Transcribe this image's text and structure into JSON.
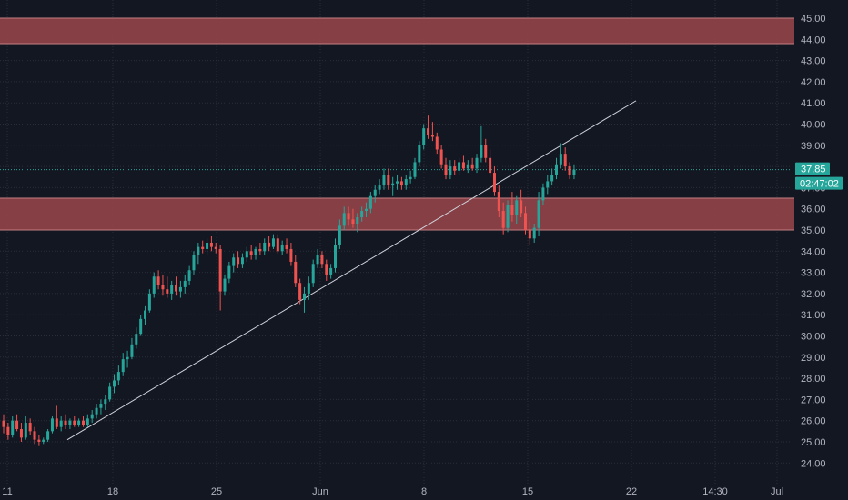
{
  "chart_data": {
    "type": "candlestick",
    "y_axis": {
      "range": [
        23.5,
        45.6
      ],
      "ticks": [
        "24.00",
        "25.00",
        "26.00",
        "27.00",
        "28.00",
        "29.00",
        "30.00",
        "31.00",
        "32.00",
        "33.00",
        "34.00",
        "35.00",
        "36.00",
        "37.00",
        "38.00",
        "39.00",
        "40.00",
        "41.00",
        "42.00",
        "43.00",
        "44.00",
        "45.00"
      ],
      "position": "right",
      "grid": true
    },
    "x_axis": {
      "ticks": [
        "11",
        "18",
        "25",
        "Jun",
        "8",
        "15",
        "22",
        "14:30",
        "Jul"
      ],
      "grid": true
    },
    "zones": [
      {
        "from": 43.8,
        "to": 45.0
      },
      {
        "from": 35.0,
        "to": 36.5
      }
    ],
    "trendline": {
      "start": [
        "May 14",
        25.1
      ],
      "end": [
        "Jun 22",
        41.1
      ]
    },
    "last_price": {
      "value": 37.85,
      "label": "37.85",
      "countdown": "02:47:02"
    },
    "candles_ohlc": [
      [
        26.0,
        26.3,
        25.4,
        25.7
      ],
      [
        25.7,
        25.9,
        25.1,
        25.3
      ],
      [
        25.3,
        26.2,
        25.2,
        26.0
      ],
      [
        26.0,
        26.3,
        25.5,
        25.6
      ],
      [
        25.6,
        25.9,
        25.0,
        25.2
      ],
      [
        25.2,
        26.2,
        25.1,
        25.9
      ],
      [
        25.9,
        26.1,
        25.3,
        25.5
      ],
      [
        25.5,
        25.7,
        24.9,
        25.1
      ],
      [
        25.1,
        25.3,
        24.8,
        25.0
      ],
      [
        25.0,
        25.2,
        24.9,
        25.1
      ],
      [
        25.1,
        25.6,
        25.0,
        25.5
      ],
      [
        25.5,
        26.2,
        25.4,
        26.1
      ],
      [
        26.1,
        26.7,
        25.6,
        25.7
      ],
      [
        25.7,
        26.2,
        25.5,
        26.0
      ],
      [
        26.0,
        26.3,
        25.6,
        25.8
      ],
      [
        25.8,
        26.1,
        25.6,
        26.0
      ],
      [
        26.0,
        26.2,
        25.7,
        25.8
      ],
      [
        25.8,
        26.1,
        25.7,
        26.0
      ],
      [
        26.0,
        26.2,
        25.7,
        25.8
      ],
      [
        25.8,
        26.3,
        25.7,
        26.1
      ],
      [
        26.1,
        26.5,
        25.9,
        26.3
      ],
      [
        26.3,
        26.8,
        26.1,
        26.6
      ],
      [
        26.6,
        27.0,
        26.3,
        26.8
      ],
      [
        26.8,
        27.2,
        26.5,
        27.0
      ],
      [
        27.0,
        27.8,
        26.9,
        27.6
      ],
      [
        27.6,
        28.2,
        27.3,
        27.9
      ],
      [
        27.9,
        28.6,
        27.7,
        28.3
      ],
      [
        28.3,
        29.2,
        28.1,
        28.9
      ],
      [
        28.9,
        29.3,
        28.5,
        29.0
      ],
      [
        29.0,
        29.9,
        28.9,
        29.6
      ],
      [
        29.6,
        30.4,
        29.4,
        30.1
      ],
      [
        30.1,
        31.0,
        30.0,
        30.8
      ],
      [
        30.8,
        31.4,
        30.5,
        31.2
      ],
      [
        31.2,
        32.2,
        31.1,
        32.0
      ],
      [
        32.0,
        33.0,
        31.8,
        32.8
      ],
      [
        32.8,
        33.1,
        32.2,
        32.4
      ],
      [
        32.4,
        32.9,
        31.9,
        32.2
      ],
      [
        32.2,
        32.8,
        31.8,
        32.0
      ],
      [
        32.0,
        32.6,
        31.7,
        32.4
      ],
      [
        32.4,
        32.8,
        31.9,
        32.1
      ],
      [
        32.1,
        32.6,
        31.8,
        32.3
      ],
      [
        32.3,
        32.9,
        32.0,
        32.6
      ],
      [
        32.6,
        33.3,
        32.4,
        33.1
      ],
      [
        33.1,
        34.0,
        32.9,
        33.8
      ],
      [
        33.8,
        34.4,
        33.4,
        34.2
      ],
      [
        34.2,
        34.5,
        33.9,
        34.1
      ],
      [
        34.1,
        34.6,
        33.8,
        34.4
      ],
      [
        34.4,
        34.7,
        34.0,
        34.2
      ],
      [
        34.2,
        34.4,
        33.9,
        34.1
      ],
      [
        34.1,
        34.3,
        31.2,
        32.1
      ],
      [
        32.1,
        32.9,
        31.9,
        32.7
      ],
      [
        32.7,
        33.5,
        32.5,
        33.3
      ],
      [
        33.3,
        33.9,
        33.0,
        33.7
      ],
      [
        33.7,
        34.0,
        33.2,
        33.4
      ],
      [
        33.4,
        33.9,
        33.2,
        33.7
      ],
      [
        33.7,
        34.2,
        33.5,
        34.0
      ],
      [
        34.0,
        34.3,
        33.6,
        33.8
      ],
      [
        33.8,
        34.2,
        33.6,
        34.1
      ],
      [
        34.1,
        34.4,
        33.8,
        34.0
      ],
      [
        34.0,
        34.6,
        33.8,
        34.4
      ],
      [
        34.4,
        34.7,
        34.0,
        34.2
      ],
      [
        34.2,
        34.8,
        34.1,
        34.6
      ],
      [
        34.6,
        34.8,
        33.9,
        34.0
      ],
      [
        34.0,
        34.5,
        33.8,
        34.3
      ],
      [
        34.3,
        34.6,
        33.9,
        34.1
      ],
      [
        34.1,
        34.4,
        33.3,
        33.5
      ],
      [
        33.5,
        33.8,
        32.3,
        32.5
      ],
      [
        32.5,
        32.7,
        31.5,
        31.7
      ],
      [
        31.7,
        32.3,
        31.1,
        32.0
      ],
      [
        32.0,
        32.8,
        31.7,
        32.5
      ],
      [
        32.5,
        33.6,
        32.3,
        33.4
      ],
      [
        33.4,
        34.1,
        33.2,
        33.8
      ],
      [
        33.8,
        34.0,
        33.2,
        33.4
      ],
      [
        33.4,
        33.6,
        32.6,
        32.9
      ],
      [
        32.9,
        33.4,
        32.7,
        33.2
      ],
      [
        33.2,
        34.6,
        33.0,
        34.3
      ],
      [
        34.3,
        35.5,
        34.1,
        35.2
      ],
      [
        35.2,
        36.1,
        35.0,
        35.8
      ],
      [
        35.8,
        36.1,
        35.2,
        35.5
      ],
      [
        35.5,
        36.0,
        35.1,
        35.3
      ],
      [
        35.3,
        35.8,
        34.9,
        35.6
      ],
      [
        35.6,
        36.1,
        35.4,
        35.9
      ],
      [
        35.9,
        36.3,
        35.6,
        36.0
      ],
      [
        36.0,
        36.8,
        35.8,
        36.6
      ],
      [
        36.6,
        37.1,
        36.3,
        36.9
      ],
      [
        36.9,
        37.4,
        36.7,
        37.1
      ],
      [
        37.1,
        37.9,
        36.9,
        37.6
      ],
      [
        37.6,
        37.9,
        36.9,
        37.1
      ],
      [
        37.1,
        37.5,
        36.6,
        37.2
      ],
      [
        37.2,
        37.6,
        36.9,
        37.3
      ],
      [
        37.3,
        37.5,
        36.9,
        37.1
      ],
      [
        37.1,
        37.6,
        36.9,
        37.4
      ],
      [
        37.4,
        37.8,
        37.2,
        37.5
      ],
      [
        37.5,
        38.4,
        37.4,
        38.2
      ],
      [
        38.2,
        39.2,
        38.0,
        39.0
      ],
      [
        39.0,
        40.0,
        38.8,
        39.8
      ],
      [
        39.8,
        40.4,
        39.3,
        39.5
      ],
      [
        39.5,
        40.1,
        39.2,
        39.4
      ],
      [
        39.4,
        39.6,
        38.6,
        38.8
      ],
      [
        38.8,
        39.0,
        37.9,
        38.1
      ],
      [
        38.1,
        38.4,
        37.4,
        37.6
      ],
      [
        37.6,
        38.3,
        37.4,
        38.0
      ],
      [
        38.0,
        38.3,
        37.6,
        37.8
      ],
      [
        37.8,
        38.4,
        37.6,
        38.2
      ],
      [
        38.2,
        38.5,
        37.8,
        37.9
      ],
      [
        37.9,
        38.3,
        37.7,
        38.1
      ],
      [
        38.1,
        38.4,
        37.8,
        37.9
      ],
      [
        37.9,
        38.6,
        37.7,
        38.4
      ],
      [
        38.4,
        39.9,
        38.2,
        39.0
      ],
      [
        39.0,
        39.3,
        38.2,
        38.4
      ],
      [
        38.4,
        38.8,
        37.5,
        37.7
      ],
      [
        37.7,
        38.0,
        36.6,
        36.8
      ],
      [
        36.8,
        37.1,
        35.6,
        35.9
      ],
      [
        35.9,
        36.3,
        34.8,
        35.1
      ],
      [
        35.1,
        36.4,
        34.9,
        36.2
      ],
      [
        36.2,
        36.8,
        35.4,
        35.7
      ],
      [
        35.7,
        36.6,
        35.3,
        36.4
      ],
      [
        36.4,
        36.9,
        35.6,
        35.8
      ],
      [
        35.8,
        36.1,
        34.8,
        35.0
      ],
      [
        35.0,
        35.4,
        34.3,
        34.6
      ],
      [
        34.6,
        35.3,
        34.4,
        35.1
      ],
      [
        35.1,
        36.8,
        34.7,
        36.4
      ],
      [
        36.4,
        37.2,
        36.2,
        37.0
      ],
      [
        37.0,
        37.6,
        36.7,
        37.3
      ],
      [
        37.3,
        37.9,
        37.1,
        37.6
      ],
      [
        37.6,
        38.4,
        37.4,
        38.1
      ],
      [
        38.1,
        39.1,
        37.9,
        38.6
      ],
      [
        38.6,
        38.9,
        37.8,
        38.0
      ],
      [
        38.0,
        38.2,
        37.4,
        37.6
      ],
      [
        37.6,
        38.1,
        37.4,
        37.85
      ]
    ]
  },
  "colors": {
    "background": "#131722",
    "grid": "#2a2e39",
    "up": "#26a69a",
    "down": "#ef5350",
    "zone": "#8b4148",
    "zone_border": "#c57c82",
    "trendline": "#d1d4dc",
    "price_line": "#26a69a"
  }
}
